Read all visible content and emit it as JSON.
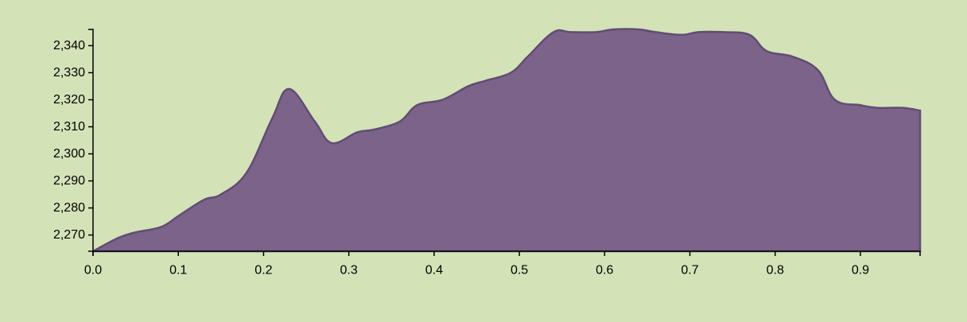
{
  "chart_data": {
    "type": "area",
    "title": "",
    "xlabel": "",
    "ylabel": "",
    "xlim": [
      0,
      0.97
    ],
    "ylim": [
      2264,
      2346
    ],
    "x_ticks": [
      0.0,
      0.1,
      0.2,
      0.3,
      0.4,
      0.5,
      0.6,
      0.7,
      0.8,
      0.9
    ],
    "x_tick_labels": [
      "0.0",
      "0.1",
      "0.2",
      "0.3",
      "0.4",
      "0.5",
      "0.6",
      "0.7",
      "0.8",
      "0.9"
    ],
    "y_ticks": [
      2270,
      2280,
      2290,
      2300,
      2310,
      2320,
      2330,
      2340
    ],
    "y_tick_labels": [
      "2,270",
      "2,280",
      "2,290",
      "2,300",
      "2,310",
      "2,320",
      "2,330",
      "2,340"
    ],
    "grid": false,
    "colors": {
      "fill": "#7b6389",
      "stroke": "#614d73",
      "background": "#d4e2b8"
    },
    "series": [
      {
        "x": [
          0.0,
          0.03,
          0.05,
          0.08,
          0.1,
          0.13,
          0.15,
          0.18,
          0.21,
          0.23,
          0.26,
          0.28,
          0.31,
          0.33,
          0.36,
          0.38,
          0.41,
          0.44,
          0.46,
          0.49,
          0.51,
          0.54,
          0.56,
          0.59,
          0.61,
          0.64,
          0.66,
          0.69,
          0.71,
          0.74,
          0.77,
          0.79,
          0.82,
          0.85,
          0.87,
          0.9,
          0.92,
          0.95,
          0.97
        ],
        "values": [
          2264,
          2269,
          2271,
          2273,
          2277,
          2283,
          2285,
          2293,
          2313,
          2324,
          2312,
          2304,
          2308,
          2309,
          2312,
          2318,
          2320,
          2325,
          2327,
          2330,
          2336,
          2345,
          2345,
          2345,
          2346,
          2346,
          2345,
          2344,
          2345,
          2345,
          2344,
          2338,
          2336,
          2331,
          2320,
          2318,
          2317,
          2317,
          2316
        ]
      }
    ]
  }
}
